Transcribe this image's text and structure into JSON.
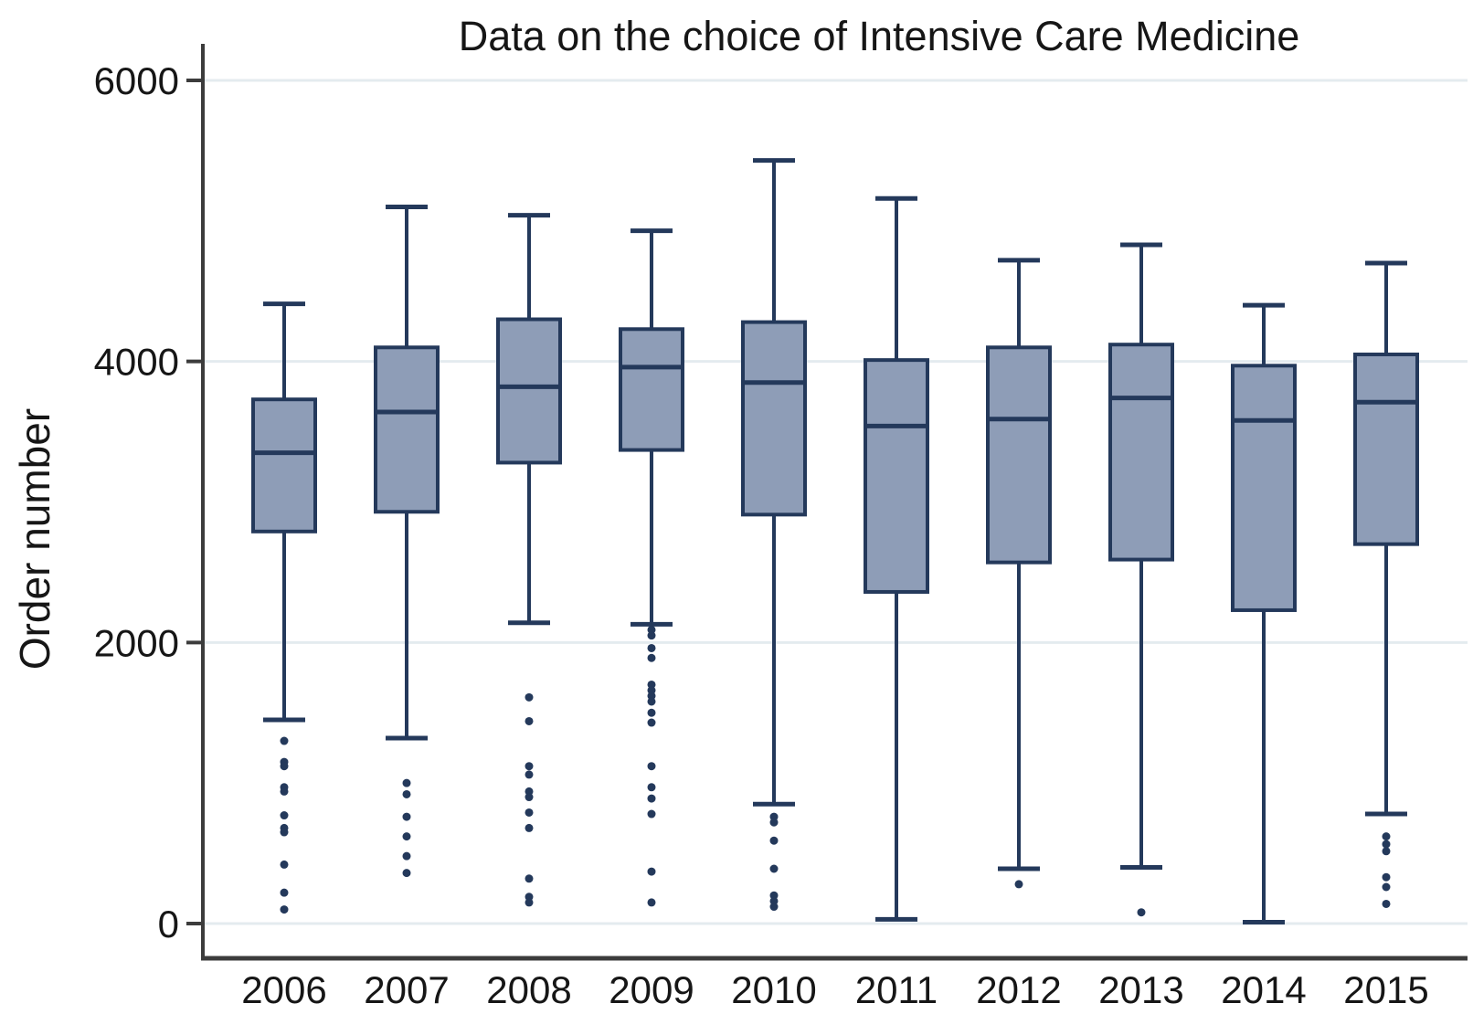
{
  "chart_data": {
    "type": "boxplot",
    "title": "Data on the choice of Intensive Care Medicine",
    "ylabel": "Order number",
    "xlabel": "",
    "categories": [
      "2006",
      "2007",
      "2008",
      "2009",
      "2010",
      "2011",
      "2012",
      "2013",
      "2014",
      "2015"
    ],
    "yticks": [
      0,
      2000,
      4000,
      6000
    ],
    "ylim": [
      0,
      6000
    ],
    "grid": "horizontal",
    "legend": "none",
    "series": [
      {
        "year": "2006",
        "whisker_low": 1450,
        "q1": 2790,
        "median": 3350,
        "q3": 3730,
        "whisker_high": 4410,
        "outliers": [
          1300,
          1150,
          1120,
          970,
          940,
          770,
          680,
          650,
          420,
          220,
          100
        ]
      },
      {
        "year": "2007",
        "whisker_low": 1320,
        "q1": 2930,
        "median": 3640,
        "q3": 4100,
        "whisker_high": 5100,
        "outliers": [
          1000,
          920,
          760,
          620,
          480,
          360
        ]
      },
      {
        "year": "2008",
        "whisker_low": 2140,
        "q1": 3280,
        "median": 3820,
        "q3": 4300,
        "whisker_high": 5040,
        "outliers": [
          1610,
          1440,
          1120,
          1060,
          940,
          900,
          790,
          680,
          320,
          190,
          150
        ]
      },
      {
        "year": "2009",
        "whisker_low": 2130,
        "q1": 3370,
        "median": 3960,
        "q3": 4230,
        "whisker_high": 4930,
        "outliers": [
          2090,
          2050,
          1960,
          1890,
          1700,
          1660,
          1620,
          1580,
          1500,
          1430,
          1120,
          970,
          890,
          780,
          370,
          150
        ]
      },
      {
        "year": "2010",
        "whisker_low": 850,
        "q1": 2910,
        "median": 3850,
        "q3": 4280,
        "whisker_high": 5430,
        "outliers": [
          760,
          720,
          590,
          390,
          200,
          160,
          120
        ]
      },
      {
        "year": "2011",
        "whisker_low": 30,
        "q1": 2360,
        "median": 3540,
        "q3": 4010,
        "whisker_high": 5160,
        "outliers": []
      },
      {
        "year": "2012",
        "whisker_low": 390,
        "q1": 2570,
        "median": 3590,
        "q3": 4100,
        "whisker_high": 4720,
        "outliers": [
          280
        ]
      },
      {
        "year": "2013",
        "whisker_low": 400,
        "q1": 2590,
        "median": 3740,
        "q3": 4120,
        "whisker_high": 4830,
        "outliers": [
          80
        ]
      },
      {
        "year": "2014",
        "whisker_low": 10,
        "q1": 2230,
        "median": 3580,
        "q3": 3970,
        "whisker_high": 4400,
        "outliers": []
      },
      {
        "year": "2015",
        "whisker_low": 780,
        "q1": 2700,
        "median": 3710,
        "q3": 4050,
        "whisker_high": 4700,
        "outliers": [
          620,
          565,
          515,
          330,
          260,
          140
        ]
      }
    ],
    "colors": {
      "box_fill": "#8e9db7",
      "box_stroke": "#24395b",
      "outlier": "#24395b",
      "grid": "#e4ebef",
      "axis": "#3c3c3c",
      "text": "#161616"
    }
  }
}
